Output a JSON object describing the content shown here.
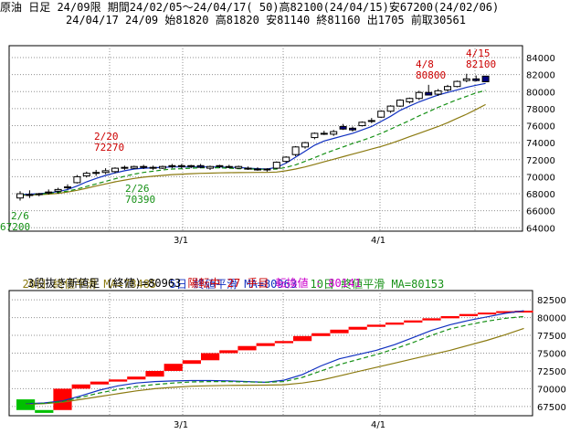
{
  "header": {
    "line1": "原油 日足 24/09限 期間24/02/05～24/04/17( 50)高82100(24/04/15)安67200(24/02/06)",
    "line2": "24/04/17 24/09 始81820 高81820 安81140 終81160 出1705 前取30561"
  },
  "legend": {
    "ma20": "20日 終値平滑 MA=78485",
    "ma5": "5日 終値平滑 MA=80963",
    "ma10": "10日 終値平滑 MA=80153"
  },
  "sub_panel": {
    "title": "3段抜き新値足 (終値)=80963",
    "status": "陽転中",
    "count": "27 手目",
    "reversal": "転換値 : 80141"
  },
  "colors": {
    "up_candle": "#ffffff",
    "down_candle": "#000080",
    "ma20": "#8b7a10",
    "ma5": "#1030c0",
    "ma10": "#159015",
    "rise": "#ff0000",
    "fall": "#00c000",
    "annotation_high": "#cc0000",
    "annotation_low": "#159015"
  },
  "chart_data": [
    {
      "type": "candlestick",
      "title": "原油 日足 24/09限",
      "x_tick_labels": [
        "3/1",
        "4/1"
      ],
      "y_ticks": [
        64000,
        66000,
        68000,
        70000,
        72000,
        74000,
        76000,
        78000,
        80000,
        82000,
        84000
      ],
      "ylim": [
        63600,
        85400
      ],
      "grid": true,
      "ohlc": [
        [
          67500,
          68300,
          67200,
          68000
        ],
        [
          67900,
          68400,
          67500,
          67900
        ],
        [
          67900,
          68100,
          67700,
          68000
        ],
        [
          68200,
          68500,
          67900,
          68200
        ],
        [
          68300,
          68700,
          68000,
          68500
        ],
        [
          68700,
          69100,
          68500,
          68800
        ],
        [
          69300,
          70200,
          69200,
          70000
        ],
        [
          70100,
          70600,
          69900,
          70400
        ],
        [
          70400,
          70800,
          70100,
          70500
        ],
        [
          70500,
          71000,
          70300,
          70700
        ],
        [
          70600,
          71100,
          70400,
          71000
        ],
        [
          71000,
          71300,
          70800,
          71100
        ],
        [
          71000,
          71300,
          70900,
          71200
        ],
        [
          71200,
          71400,
          70900,
          71100
        ],
        [
          71100,
          71300,
          70800,
          71000
        ],
        [
          71000,
          71300,
          70900,
          71200
        ],
        [
          71200,
          71500,
          71000,
          71300
        ],
        [
          71300,
          71500,
          71000,
          71200
        ],
        [
          71200,
          71400,
          71000,
          71300
        ],
        [
          71300,
          71500,
          71000,
          71100
        ],
        [
          71000,
          71300,
          70800,
          71200
        ],
        [
          71200,
          71400,
          71000,
          71300
        ],
        [
          71200,
          71400,
          71000,
          71100
        ],
        [
          71000,
          71300,
          70900,
          71200
        ],
        [
          71000,
          71200,
          70800,
          70900
        ],
        [
          70900,
          71100,
          70700,
          70800
        ],
        [
          70800,
          71000,
          70600,
          70900
        ],
        [
          71000,
          71800,
          70900,
          71700
        ],
        [
          71800,
          72400,
          71600,
          72300
        ],
        [
          72600,
          73600,
          72400,
          73500
        ],
        [
          73500,
          74100,
          73300,
          74000
        ],
        [
          74600,
          75200,
          74400,
          75100
        ],
        [
          75100,
          75400,
          74900,
          75000
        ],
        [
          75000,
          75500,
          74800,
          75300
        ],
        [
          75900,
          76200,
          75500,
          75600
        ],
        [
          75700,
          75900,
          75300,
          75500
        ],
        [
          76000,
          76500,
          75900,
          76400
        ],
        [
          76500,
          76900,
          76300,
          76600
        ],
        [
          77000,
          77800,
          76900,
          77700
        ],
        [
          77700,
          78400,
          77500,
          78300
        ],
        [
          78300,
          79100,
          78200,
          79000
        ],
        [
          78800,
          79300,
          78600,
          79200
        ],
        [
          79200,
          80100,
          79000,
          79900
        ],
        [
          79900,
          80800,
          79700,
          79600
        ],
        [
          79700,
          80300,
          79500,
          80100
        ],
        [
          80200,
          80800,
          80000,
          80600
        ],
        [
          80600,
          81300,
          80500,
          81200
        ],
        [
          81300,
          82100,
          81100,
          81500
        ],
        [
          81500,
          81900,
          81200,
          81300
        ],
        [
          81820,
          81820,
          81140,
          81160
        ]
      ],
      "series": [
        {
          "name": "20日 終値平滑",
          "values": [
            67800,
            67850,
            67900,
            67950,
            68050,
            68200,
            68400,
            68650,
            68900,
            69150,
            69400,
            69600,
            69800,
            69950,
            70050,
            70150,
            70250,
            70300,
            70350,
            70400,
            70420,
            70450,
            70470,
            70480,
            70490,
            70500,
            70500,
            70550,
            70700,
            70900,
            71150,
            71450,
            71750,
            72050,
            72350,
            72650,
            72950,
            73250,
            73550,
            73900,
            74300,
            74700,
            75100,
            75500,
            75900,
            76350,
            76850,
            77350,
            77900,
            78485
          ]
        },
        {
          "name": "5日 終値平滑",
          "values": [
            67900,
            67950,
            68000,
            68100,
            68250,
            68500,
            68900,
            69400,
            69800,
            70150,
            70450,
            70700,
            70900,
            71000,
            71050,
            71100,
            71150,
            71150,
            71150,
            71150,
            71150,
            71150,
            71100,
            71100,
            71000,
            70950,
            70900,
            71100,
            71600,
            72300,
            73000,
            73700,
            74200,
            74500,
            74800,
            75100,
            75500,
            75900,
            76500,
            77100,
            77800,
            78300,
            78800,
            79200,
            79600,
            79900,
            80200,
            80500,
            80750,
            80963
          ]
        },
        {
          "name": "10日 終値平滑",
          "values": [
            67850,
            67900,
            67950,
            68050,
            68150,
            68300,
            68550,
            68850,
            69150,
            69450,
            69750,
            70050,
            70300,
            70500,
            70650,
            70800,
            70900,
            70950,
            71000,
            71050,
            71050,
            71050,
            71000,
            70950,
            70900,
            70900,
            70850,
            70900,
            71100,
            71400,
            71800,
            72250,
            72700,
            73100,
            73500,
            73900,
            74250,
            74650,
            75100,
            75600,
            76100,
            76600,
            77150,
            77650,
            78150,
            78600,
            79050,
            79450,
            79850,
            80153
          ]
        }
      ],
      "annotations": [
        {
          "date": "2/6",
          "value": "67200",
          "kind": "low"
        },
        {
          "date": "2/20",
          "value": "72270",
          "kind": "high"
        },
        {
          "date": "2/26",
          "value": "70390",
          "kind": "low"
        },
        {
          "date": "4/8",
          "value": "80800",
          "kind": "high"
        },
        {
          "date": "4/15",
          "value": "82100",
          "kind": "high"
        }
      ]
    },
    {
      "type": "bar",
      "title": "3段抜き新値足 (終値)=80963",
      "x_tick_labels": [
        "3/1",
        "4/1"
      ],
      "y_ticks": [
        67500,
        70000,
        72500,
        75000,
        77500,
        80000,
        82500
      ],
      "ylim": [
        66200,
        83800
      ],
      "grid": true,
      "bricks": [
        {
          "dir": "down",
          "low": 67000,
          "high": 68500
        },
        {
          "dir": "down",
          "low": 66600,
          "high": 67000
        },
        {
          "dir": "up",
          "low": 67000,
          "high": 70000
        },
        {
          "dir": "up",
          "low": 70000,
          "high": 70600
        },
        {
          "dir": "up",
          "low": 70600,
          "high": 71000
        },
        {
          "dir": "up",
          "low": 71000,
          "high": 71300
        },
        {
          "dir": "up",
          "low": 71300,
          "high": 71700
        },
        {
          "dir": "up",
          "low": 71700,
          "high": 72500
        },
        {
          "dir": "up",
          "low": 72500,
          "high": 73500
        },
        {
          "dir": "up",
          "low": 73500,
          "high": 74000
        },
        {
          "dir": "up",
          "low": 74000,
          "high": 75000
        },
        {
          "dir": "up",
          "low": 75000,
          "high": 75400
        },
        {
          "dir": "up",
          "low": 75400,
          "high": 76000
        },
        {
          "dir": "up",
          "low": 76000,
          "high": 76400
        },
        {
          "dir": "up",
          "low": 76400,
          "high": 76700
        },
        {
          "dir": "up",
          "low": 76700,
          "high": 77400
        },
        {
          "dir": "up",
          "low": 77400,
          "high": 77800
        },
        {
          "dir": "up",
          "low": 77800,
          "high": 78300
        },
        {
          "dir": "up",
          "low": 78300,
          "high": 78700
        },
        {
          "dir": "up",
          "low": 78700,
          "high": 79000
        },
        {
          "dir": "up",
          "low": 79000,
          "high": 79300
        },
        {
          "dir": "up",
          "low": 79300,
          "high": 79600
        },
        {
          "dir": "up",
          "low": 79600,
          "high": 79900
        },
        {
          "dir": "up",
          "low": 79900,
          "high": 80200
        },
        {
          "dir": "up",
          "low": 80200,
          "high": 80500
        },
        {
          "dir": "up",
          "low": 80500,
          "high": 80700
        },
        {
          "dir": "up",
          "low": 80700,
          "high": 80900
        },
        {
          "dir": "up",
          "low": 80900,
          "high": 80963
        }
      ],
      "series": [
        {
          "name": "20日 終値平滑",
          "values": [
            67800,
            67900,
            68100,
            68500,
            68900,
            69300,
            69700,
            70000,
            70200,
            70350,
            70420,
            70470,
            70490,
            70500,
            70550,
            70800,
            71200,
            71800,
            72400,
            73000,
            73600,
            74200,
            74800,
            75400,
            76100,
            76800,
            77600,
            78485
          ]
        },
        {
          "name": "5日 終値平滑",
          "values": [
            67900,
            68000,
            68300,
            69000,
            69800,
            70400,
            70800,
            71000,
            71100,
            71150,
            71150,
            71100,
            71000,
            70900,
            71200,
            72000,
            73200,
            74200,
            74800,
            75400,
            76200,
            77200,
            78200,
            79000,
            79600,
            80100,
            80600,
            80963
          ]
        },
        {
          "name": "10日 終値平滑",
          "values": [
            67850,
            67950,
            68200,
            68800,
            69400,
            69900,
            70300,
            70600,
            70800,
            70950,
            71000,
            71000,
            70950,
            70900,
            71000,
            71600,
            72500,
            73400,
            74100,
            74800,
            75600,
            76500,
            77500,
            78400,
            79000,
            79500,
            79900,
            80153
          ]
        }
      ]
    }
  ]
}
